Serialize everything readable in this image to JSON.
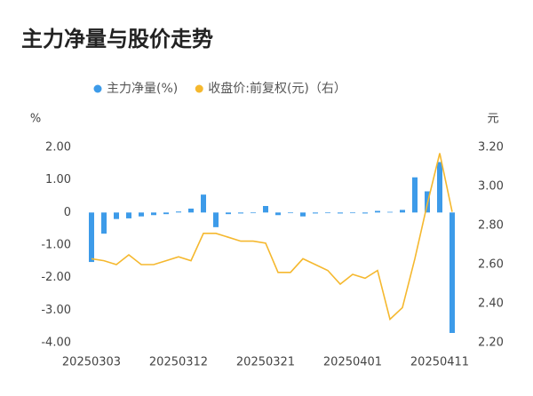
{
  "chart_data": {
    "type": "bar_line",
    "title": "主力净量与股价走势",
    "y_label": "%",
    "y2_label": "元",
    "categories": [
      "20250303",
      null,
      null,
      null,
      null,
      null,
      null,
      "20250312",
      null,
      null,
      null,
      null,
      null,
      null,
      "20250321",
      null,
      null,
      null,
      null,
      null,
      null,
      "20250401",
      null,
      null,
      null,
      null,
      null,
      null,
      "20250411",
      null
    ],
    "series": [
      {
        "name": "主力净量(%)",
        "type": "bar",
        "color": "#3d9be9",
        "values": [
          -1.52,
          -0.65,
          -0.2,
          -0.18,
          -0.12,
          -0.08,
          -0.05,
          0.03,
          0.12,
          0.55,
          -0.45,
          -0.05,
          -0.03,
          -0.02,
          0.2,
          -0.08,
          -0.02,
          -0.12,
          -0.03,
          -0.02,
          -0.03,
          -0.02,
          -0.03,
          0.05,
          0.02,
          0.08,
          1.08,
          0.65,
          1.55,
          -3.7
        ]
      },
      {
        "name": "收盘价:前复权(元)（右）",
        "type": "line",
        "axis": "y2",
        "color": "#f5b82e",
        "values": [
          2.63,
          2.62,
          2.6,
          2.65,
          2.6,
          2.6,
          2.62,
          2.64,
          2.62,
          2.76,
          2.76,
          2.74,
          2.72,
          2.72,
          2.71,
          2.56,
          2.56,
          2.63,
          2.6,
          2.57,
          2.5,
          2.55,
          2.53,
          2.57,
          2.32,
          2.38,
          2.63,
          2.91,
          3.17,
          2.87
        ]
      }
    ],
    "ylim": [
      -4,
      2
    ],
    "yticks": [
      {
        "value": 2,
        "label": "2.00"
      },
      {
        "value": 1,
        "label": "1.00"
      },
      0,
      {
        "value": -1,
        "label": "-1.00"
      },
      {
        "value": -2,
        "label": "-2.00"
      },
      {
        "value": -3,
        "label": "-3.00"
      },
      {
        "value": -4,
        "label": "-4.00"
      }
    ],
    "y2lim": [
      2.2,
      3.2
    ],
    "y2ticks": [
      {
        "value": 3.2,
        "label": "3.20"
      },
      {
        "value": 3,
        "label": "3.00"
      },
      {
        "value": 2.8,
        "label": "2.80"
      },
      {
        "value": 2.6,
        "label": "2.60"
      },
      {
        "value": 2.4,
        "label": "2.40"
      },
      {
        "value": 2.2,
        "label": "2.20"
      }
    ]
  }
}
